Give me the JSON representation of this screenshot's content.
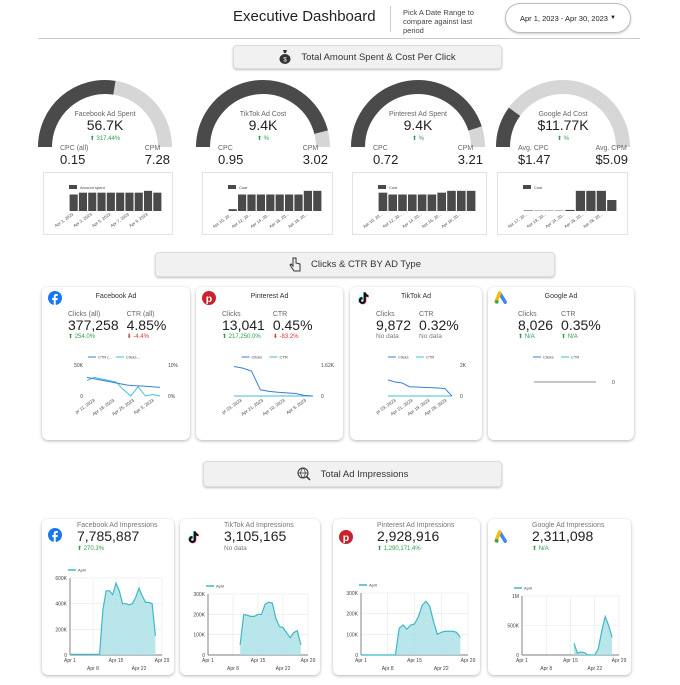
{
  "header": {
    "title": "Executive Dashboard",
    "pick_label": "Pick A Date Range to compare against last period",
    "date_range": "Apr 1, 2023 - Apr 30, 2023",
    "dropdown_icon": "caret-down"
  },
  "colors": {
    "gauge_fill": "#4a4a4a",
    "gauge_bg": "#d6d6d6",
    "bar": "#4a4a4a",
    "line_dark": "#3b7dd8",
    "line_light": "#3fc1d0",
    "area": "#3fb8c6",
    "area_fill": "#a8e0e6",
    "up": "#2e9e4a",
    "down": "#d33333"
  },
  "banners": [
    {
      "label": "Total Amount Spent & Cost Per Click",
      "icon": "money-bag"
    },
    {
      "label": "Clicks & CTR BY AD Type",
      "icon": "pointer-hand"
    },
    {
      "label": "Total Ad Impressions",
      "icon": "globe-search"
    }
  ],
  "spend": [
    {
      "label": "Facebook Ad Spent",
      "value": "56.7K",
      "change": "⬆ 317.44%",
      "gauge": 0.55,
      "m1_label": "CPC (all)",
      "m1": "0.15",
      "m2_label": "CPM",
      "m2": "7.28",
      "legend": "Amount spent",
      "bars": [
        9,
        10,
        10,
        10,
        10,
        10,
        10,
        10,
        11,
        10
      ],
      "ticks": [
        "Apr 1, 2023",
        "Apr 3, 2023",
        "Apr 5, 2023",
        "Apr 7, 2023",
        "Apr 9, 2023"
      ]
    },
    {
      "label": "TikTok Ad Cost",
      "value": "9.4K",
      "change": "⬆ %",
      "gauge": 0.92,
      "m1_label": "CPC",
      "m1": "0.95",
      "m2_label": "CPM",
      "m2": "3.02",
      "legend": "Cost",
      "bars": [
        1,
        9,
        9,
        9,
        9,
        9,
        9,
        9,
        11,
        11
      ],
      "ticks": [
        "Apr 10, 20...",
        "Apr 12, 20...",
        "Apr 14, 20...",
        "Apr 16, 20...",
        "Apr 18, 20..."
      ]
    },
    {
      "label": "Pinterest Ad Spent",
      "value": "9.4K",
      "change": "⬆ %",
      "gauge": 0.9,
      "m1_label": "CPC",
      "m1": "0.72",
      "m2_label": "CPM",
      "m2": "3.21",
      "legend": "Cost",
      "bars": [
        10,
        9,
        9,
        9,
        9,
        9,
        10,
        11,
        11,
        11
      ],
      "ticks": [
        "Apr 10, 20...",
        "Apr 12, 20...",
        "Apr 14, 20...",
        "Apr 16, 20...",
        "Apr 18, 20..."
      ]
    },
    {
      "label": "Google Ad Cost",
      "value": "$11.77K",
      "change": "⬆ %",
      "gauge": 0.2,
      "m1_label": "Avg. CPC",
      "m1": "$1.47",
      "m2_label": "Avg. CPM",
      "m2": "$5.09",
      "legend": "Cost",
      "bars": [
        0.3,
        0.2,
        0.2,
        0.2,
        0.6,
        11,
        11,
        11,
        6
      ],
      "ticks": [
        "Apr 17, 20...",
        "Apr 19, 20...",
        "Apr 24, 20...",
        "Apr 26, 20...",
        "Apr 28, 20..."
      ]
    }
  ],
  "clicks": [
    {
      "title": "Facebook Ad",
      "icon": "facebook",
      "m1_label": "Clicks (all)",
      "m1": "377,258",
      "m1_chg": "⬆ 254.0%",
      "m1_dir": "up",
      "m2_label": "CTR (all)",
      "m2": "4.85%",
      "m2_chg": "⬇ -4.4%",
      "m2_dir": "down",
      "legend": [
        "CTR (...",
        "Clicks..."
      ],
      "y_left": [
        "50K",
        "0"
      ],
      "y_right": [
        "10%",
        "0%"
      ],
      "dark": [
        0.6,
        0.55,
        0.5,
        0.45,
        0.4,
        0.35,
        0.33,
        0.32,
        0.3,
        0.28
      ],
      "light": [
        0.5,
        0.6,
        0.55,
        0.5,
        0.45,
        0.2,
        0,
        0.3,
        0,
        0.05,
        0
      ],
      "ticks": [
        "pr 11, 2023",
        "Apr 18, 2023",
        "Apr 25, 2023",
        "Apr 3, 2023"
      ]
    },
    {
      "title": "Pinterest Ad",
      "icon": "pinterest",
      "m1_label": "Clicks",
      "m1": "13,041",
      "m1_chg": "⬆ 217,250.0%",
      "m1_dir": "up",
      "m2_label": "CTR",
      "m2": "0.45%",
      "m2_chg": "⬇ -83.2%",
      "m2_dir": "down",
      "legend": [
        "Clicks",
        "CTR"
      ],
      "y_left": [],
      "y_right": [
        "1.62K",
        "0"
      ],
      "dark": [
        0.95,
        0.9,
        0.8,
        0.2,
        0.15,
        0.12,
        0.1,
        0.08,
        0.02,
        0
      ],
      "light": [
        0,
        0,
        0,
        0,
        0,
        0,
        0,
        0,
        0,
        0
      ],
      "ticks": [
        "pr 23, 2023",
        "Apr 21, 2023",
        "Apr 10, 2023",
        "Apr 9, 2023"
      ]
    },
    {
      "title": "TikTok Ad",
      "icon": "tiktok",
      "m1_label": "Clicks",
      "m1": "9,872",
      "m1_chg": "No data",
      "m1_dir": "none",
      "m2_label": "CTR",
      "m2": "0.32%",
      "m2_chg": "No data",
      "m2_dir": "none",
      "legend": [
        "Clicks",
        "CTR"
      ],
      "y_left": [],
      "y_right": [
        "2K",
        "0"
      ],
      "dark": [
        0.52,
        0.45,
        0.42,
        0.3,
        0.29,
        0.28,
        0.27,
        0.26,
        0.24,
        0
      ],
      "light": [
        0,
        0,
        0,
        0,
        0,
        0,
        0,
        0,
        0,
        0
      ],
      "ticks": [
        "pr 23, 2023",
        "Apr 21, 2023",
        "Apr 19, 2023",
        "Apr 28, 2023"
      ]
    },
    {
      "title": "Google Ad",
      "icon": "google-ads",
      "m1_label": "Clicks",
      "m1": "8,026",
      "m1_chg": "⬆ N/A",
      "m1_dir": "up",
      "m2_label": "CTR",
      "m2": "0.35%",
      "m2_chg": "⬆ N/A",
      "m2_dir": "up",
      "legend": [
        "Clicks",
        "CTR"
      ],
      "y_left": [],
      "y_right": [
        "0"
      ],
      "dark": [],
      "light": [],
      "ticks": []
    }
  ],
  "impressions": [
    {
      "title": "Facebook Ad Impressions",
      "icon": "facebook",
      "value": "7,785,887",
      "change": "⬆ 270.3%",
      "dir": "up",
      "legend": "April",
      "ymax": 600000,
      "yticks": [
        "600K",
        "400K",
        "200K",
        "0"
      ],
      "values": [
        5000,
        5000,
        5000,
        5000,
        5000,
        5000,
        5000,
        5000,
        5000,
        5000,
        350000,
        500000,
        500000,
        470000,
        560000,
        500000,
        400000,
        400000,
        390000,
        400000,
        450000,
        520000,
        460000,
        410000,
        410000,
        400000,
        150000
      ]
    },
    {
      "title": "TikTok Ad Impressions",
      "icon": "tiktok",
      "value": "3,105,165",
      "change": "No data",
      "dir": "none",
      "legend": "April",
      "ymax": 300000,
      "yticks": [
        "300K",
        "200K",
        "100K",
        "0"
      ],
      "values": [
        null,
        null,
        null,
        null,
        null,
        null,
        null,
        null,
        null,
        50000,
        200000,
        195000,
        190000,
        190000,
        200000,
        200000,
        250000,
        260000,
        255000,
        180000,
        140000,
        135000,
        110000,
        85000,
        110000,
        120000,
        50000
      ]
    },
    {
      "title": "Pinterest Ad Impressions",
      "icon": "pinterest",
      "value": "2,928,916",
      "change": "⬆ 1,290,171.4%",
      "dir": "up",
      "legend": "April",
      "ymax": 300000,
      "yticks": [
        "300K",
        "200K",
        "100K",
        "0"
      ],
      "values": [
        0,
        0,
        0,
        0,
        0,
        0,
        0,
        0,
        0,
        0,
        130000,
        145000,
        125000,
        145000,
        150000,
        185000,
        240000,
        260000,
        235000,
        160000,
        100000,
        110000,
        115000,
        115000,
        115000,
        110000,
        85000
      ]
    },
    {
      "title": "Google Ad Impressions",
      "icon": "google-ads",
      "value": "2,311,098",
      "change": "⬆ N/A",
      "dir": "up",
      "legend": "April",
      "ymax": 1000000,
      "yticks": [
        "1M",
        "500K",
        "0"
      ],
      "values": [
        null,
        null,
        null,
        null,
        null,
        null,
        null,
        null,
        null,
        null,
        null,
        null,
        null,
        null,
        null,
        200000,
        30000,
        50000,
        40000,
        0,
        0,
        0,
        100000,
        400000,
        650000,
        500000,
        300000
      ]
    }
  ],
  "x_ticks_top": [
    "Apr 1",
    "Apr 15",
    "Apr 29"
  ],
  "x_ticks_bottom": [
    "Apr 8",
    "Apr 22"
  ]
}
